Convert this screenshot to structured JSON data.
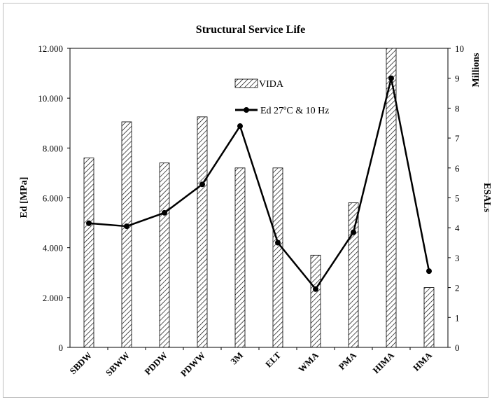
{
  "chart_data": {
    "type": "bar+line",
    "title": "Structural Service Life",
    "categories": [
      "SBDW",
      "SBWW",
      "PDDW",
      "PDWW",
      "3M",
      "ELT",
      "WMA",
      "PMA",
      "HIMA",
      "HMA"
    ],
    "series": [
      {
        "name": "VIDA",
        "kind": "bar",
        "axis": "left",
        "values": [
          7600,
          9050,
          7400,
          9250,
          7200,
          7200,
          3700,
          5800,
          12000,
          2400
        ]
      },
      {
        "name": "Ed 27ºC & 10 Hz",
        "kind": "line",
        "axis": "right",
        "values": [
          4.15,
          4.05,
          4.5,
          5.45,
          7.4,
          3.5,
          1.95,
          3.85,
          9.0,
          2.55
        ]
      }
    ],
    "left_axis": {
      "label": "Ed [MPa]",
      "ylim": [
        0,
        12000
      ],
      "ticks": [
        "0",
        "2.000",
        "4.000",
        "6.000",
        "8.000",
        "10.000",
        "12.000"
      ]
    },
    "right_axis": {
      "label": "ESALs",
      "units_label": "Millions",
      "ylim": [
        0,
        10
      ],
      "ticks": [
        "0",
        "1",
        "2",
        "3",
        "4",
        "5",
        "6",
        "7",
        "8",
        "9",
        "10"
      ]
    },
    "grid": false,
    "legend_position": "top-center"
  }
}
